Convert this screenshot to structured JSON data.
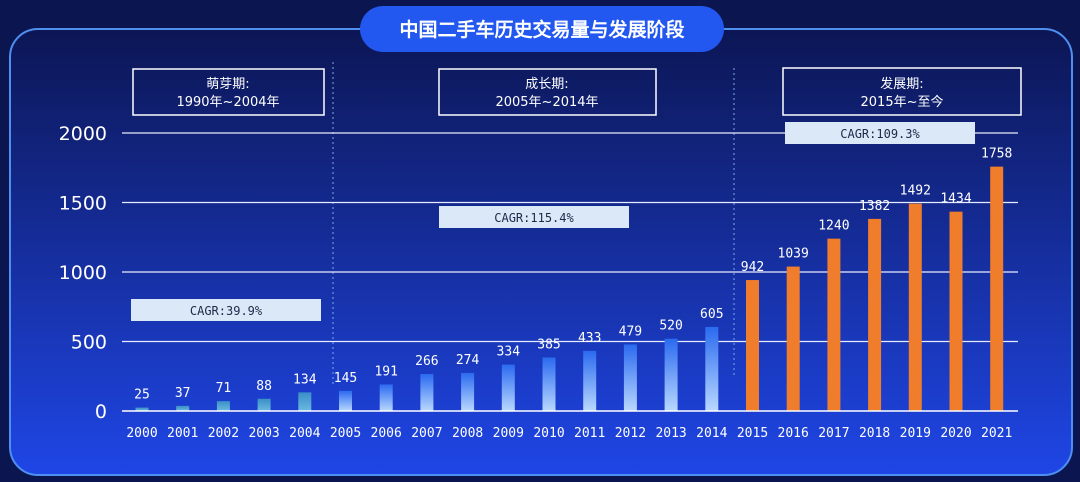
{
  "title": "中国二手车历史交易量与发展阶段",
  "phases": [
    {
      "name": "萌芽期:",
      "range": "1990年~2004年"
    },
    {
      "name": "成长期:",
      "range": "2005年~2014年"
    },
    {
      "name": "发展期:",
      "range": "2015年~至今"
    }
  ],
  "cagr": [
    "CAGR:39.9%",
    "CAGR:115.4%",
    "CAGR:109.3%"
  ],
  "colors": {
    "background_top": "#0c1654",
    "background_bottom": "#1f46e6",
    "title_pill": "#2358f0",
    "bar_early": "#3a8fc8",
    "bar_growth_top": "#2b6af0",
    "bar_growth_bottom": "#b9d8ff",
    "bar_development": "#ef7d2c",
    "cagr_box": "#dbe8f7",
    "frame": "#4f8ff0"
  },
  "chart_data": {
    "type": "bar",
    "categories": [
      "2000",
      "2001",
      "2002",
      "2003",
      "2004",
      "2005",
      "2006",
      "2007",
      "2008",
      "2009",
      "2010",
      "2011",
      "2012",
      "2013",
      "2014",
      "2015",
      "2016",
      "2017",
      "2018",
      "2019",
      "2020",
      "2021"
    ],
    "values": [
      25,
      37,
      71,
      88,
      134,
      145,
      191,
      266,
      274,
      334,
      385,
      433,
      479,
      520,
      605,
      942,
      1039,
      1240,
      1382,
      1492,
      1434,
      1758
    ],
    "yticks": [
      0,
      500,
      1000,
      1500,
      2000
    ],
    "ylim": [
      0,
      2000
    ],
    "grid": true
  }
}
